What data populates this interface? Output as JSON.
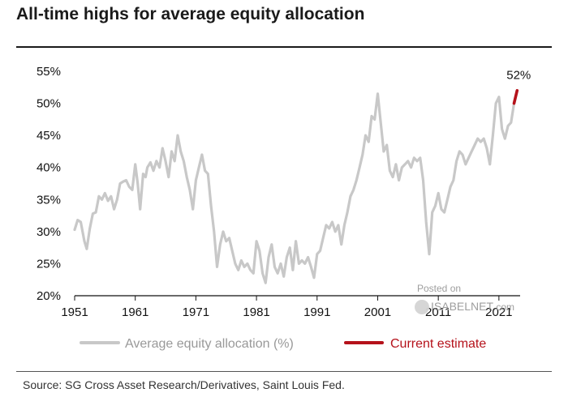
{
  "title": "All-time highs for average equity allocation",
  "source": "Source: SG Cross Asset Research/Derivatives, Saint Louis Fed.",
  "watermark": {
    "line1": "Posted on",
    "line2": "ISABELNET",
    "line3": ".com"
  },
  "colors": {
    "series": "#c8c8c8",
    "estimate": "#b5121b",
    "axis": "#111111"
  },
  "chart_data": {
    "type": "line",
    "xlim": [
      1951,
      2024.5
    ],
    "ylim": [
      20,
      55
    ],
    "x_ticks": [
      1951,
      1961,
      1971,
      1981,
      1991,
      2001,
      2011,
      2021
    ],
    "x_tick_labels": [
      "1951",
      "1961",
      "1971",
      "1981",
      "1991",
      "2001",
      "2011",
      "2021"
    ],
    "y_ticks": [
      20,
      25,
      30,
      35,
      40,
      45,
      50,
      55
    ],
    "y_tick_labels": [
      "20%",
      "25%",
      "30%",
      "35%",
      "40%",
      "45%",
      "50%",
      "55%"
    ],
    "legend": {
      "position": "bottom"
    },
    "series": [
      {
        "name": "Average equity allocation (%)",
        "x": [
          1951,
          1951.5,
          1952,
          1952.6,
          1953,
          1953.5,
          1954,
          1954.5,
          1955,
          1955.5,
          1956,
          1956.5,
          1957,
          1957.5,
          1958,
          1958.5,
          1959,
          1959.5,
          1960,
          1960.5,
          1961,
          1961.4,
          1961.8,
          1962.3,
          1962.7,
          1963,
          1963.5,
          1964,
          1964.5,
          1965,
          1965.5,
          1966,
          1966.5,
          1967,
          1967.5,
          1968,
          1968.5,
          1969,
          1969.5,
          1970,
          1970.5,
          1971,
          1971.5,
          1972,
          1972.5,
          1973,
          1973.5,
          1974,
          1974.5,
          1975,
          1975.5,
          1976,
          1976.5,
          1977,
          1977.5,
          1978,
          1978.5,
          1979,
          1979.5,
          1980,
          1980.5,
          1981,
          1981.5,
          1982,
          1982.5,
          1983,
          1983.5,
          1984,
          1984.5,
          1985,
          1985.5,
          1986,
          1986.5,
          1987,
          1987.5,
          1988,
          1988.5,
          1989,
          1989.5,
          1990,
          1990.5,
          1991,
          1991.5,
          1992,
          1992.5,
          1993,
          1993.5,
          1994,
          1994.5,
          1995,
          1995.5,
          1996,
          1996.5,
          1997,
          1997.5,
          1998,
          1998.5,
          1999,
          1999.5,
          2000,
          2000.5,
          2001,
          2001.5,
          2002,
          2002.5,
          2003,
          2003.5,
          2004,
          2004.5,
          2005,
          2005.5,
          2006,
          2006.5,
          2007,
          2007.5,
          2008,
          2008.5,
          2009,
          2009.5,
          2010,
          2010.5,
          2011,
          2011.5,
          2012,
          2012.5,
          2013,
          2013.5,
          2014,
          2014.5,
          2015,
          2015.5,
          2016,
          2016.5,
          2017,
          2017.5,
          2018,
          2018.5,
          2019,
          2019.5,
          2020,
          2020.5,
          2021,
          2021.5,
          2022,
          2022.5,
          2023,
          2023.5
        ],
        "values": [
          30.3,
          31.8,
          31.5,
          28.5,
          27.3,
          30.5,
          32.8,
          33.0,
          35.5,
          35.0,
          36.0,
          34.8,
          35.5,
          33.5,
          35.0,
          37.5,
          37.8,
          38.0,
          37.0,
          36.5,
          40.5,
          37.5,
          33.5,
          39.0,
          38.5,
          40.0,
          40.8,
          39.5,
          41.0,
          40.0,
          43.0,
          41.0,
          38.5,
          42.5,
          41.0,
          45.0,
          42.5,
          41.0,
          38.5,
          36.5,
          33.5,
          38.0,
          40.0,
          42.0,
          39.5,
          39.0,
          34.0,
          30.0,
          24.5,
          28.0,
          30.0,
          28.5,
          29.0,
          27.0,
          25.0,
          24.0,
          25.5,
          24.5,
          25.0,
          24.0,
          23.5,
          28.5,
          27.0,
          23.5,
          22.0,
          26.0,
          28.0,
          24.5,
          23.5,
          25.0,
          23.0,
          26.0,
          27.5,
          24.0,
          28.5,
          25.0,
          25.5,
          25.0,
          26.0,
          24.5,
          22.8,
          26.5,
          27.0,
          29.0,
          31.0,
          30.5,
          31.5,
          30.0,
          31.0,
          28.0,
          31.0,
          33.0,
          35.5,
          36.5,
          38.0,
          40.0,
          42.0,
          45.0,
          44.0,
          48.0,
          47.5,
          51.5,
          47.0,
          42.5,
          43.5,
          39.5,
          38.5,
          40.5,
          38.0,
          40.0,
          40.5,
          41.0,
          40.0,
          41.5,
          41.0,
          41.5,
          38.0,
          31.5,
          26.5,
          33.0,
          34.0,
          36.0,
          33.5,
          33.0,
          35.0,
          37.0,
          38.0,
          41.0,
          42.5,
          42.0,
          40.5,
          41.5,
          42.5,
          43.5,
          44.5,
          44.0,
          44.5,
          43.0,
          40.5,
          45.0,
          50.0,
          51.0,
          46.0,
          44.5,
          46.5,
          47.0,
          50.0
        ]
      },
      {
        "name": "Current estimate",
        "x": [
          2023.5,
          2024.0
        ],
        "values": [
          50.0,
          52.0
        ],
        "annotation": "52%"
      }
    ]
  }
}
